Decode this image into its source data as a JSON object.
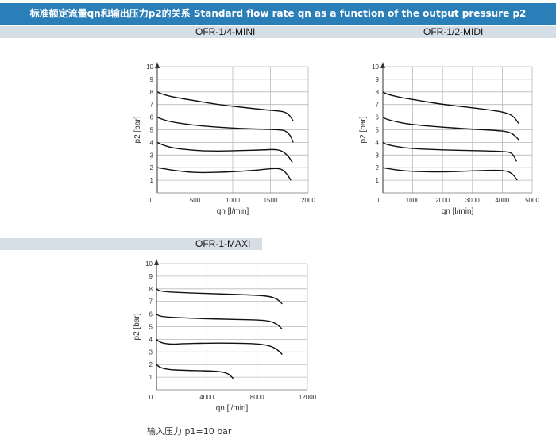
{
  "header": {
    "title": "标准额定流量qn和输出压力p2的关系 Standard flow rate qn as a function of the output pressure p2"
  },
  "colors": {
    "header_bg": "#2b7fb8",
    "band_bg": "#d6dee6",
    "grid": "#b9b9b9",
    "curve": "#111111"
  },
  "footnote": "输入压力 p1=10 bar",
  "chart_data": [
    {
      "type": "line",
      "title": "OFR-1/4-MINI",
      "xlabel": "qn [l/min]",
      "ylabel": "p2 [bar]",
      "xlim": [
        0,
        2000
      ],
      "ylim": [
        0,
        10
      ],
      "xticks": [
        0,
        500,
        1000,
        1500,
        2000
      ],
      "yticks": [
        1,
        2,
        3,
        4,
        5,
        6,
        7,
        8,
        9,
        10
      ],
      "grid": true,
      "series": [
        {
          "x": [
            0,
            50,
            200,
            500,
            800,
            1100,
            1400,
            1600,
            1700,
            1760,
            1800
          ],
          "y": [
            8.0,
            7.85,
            7.6,
            7.3,
            7.0,
            6.8,
            6.6,
            6.5,
            6.4,
            6.1,
            5.7
          ]
        },
        {
          "x": [
            0,
            50,
            200,
            500,
            800,
            1100,
            1400,
            1600,
            1700,
            1770,
            1800
          ],
          "y": [
            6.0,
            5.85,
            5.6,
            5.35,
            5.2,
            5.1,
            5.05,
            5.0,
            4.95,
            4.5,
            4.0
          ]
        },
        {
          "x": [
            0,
            50,
            200,
            500,
            800,
            1100,
            1400,
            1550,
            1650,
            1740,
            1790
          ],
          "y": [
            4.0,
            3.85,
            3.55,
            3.35,
            3.3,
            3.35,
            3.4,
            3.45,
            3.35,
            2.9,
            2.4
          ]
        },
        {
          "x": [
            0,
            50,
            200,
            400,
            600,
            900,
            1200,
            1400,
            1550,
            1650,
            1720,
            1770
          ],
          "y": [
            2.0,
            1.95,
            1.8,
            1.65,
            1.6,
            1.65,
            1.75,
            1.85,
            1.95,
            1.9,
            1.5,
            1.0
          ]
        }
      ]
    },
    {
      "type": "line",
      "title": "OFR-1/2-MIDI",
      "xlabel": "qn [l/min]",
      "ylabel": "p2 [bar]",
      "xlim": [
        0,
        5000
      ],
      "ylim": [
        0,
        10
      ],
      "xticks": [
        0,
        1000,
        2000,
        3000,
        4000,
        5000
      ],
      "yticks": [
        1,
        2,
        3,
        4,
        5,
        6,
        7,
        8,
        9,
        10
      ],
      "grid": true,
      "series": [
        {
          "x": [
            0,
            100,
            500,
            1000,
            2000,
            3000,
            3800,
            4200,
            4400,
            4550
          ],
          "y": [
            8.0,
            7.85,
            7.6,
            7.4,
            7.0,
            6.75,
            6.5,
            6.3,
            6.0,
            5.5
          ]
        },
        {
          "x": [
            0,
            100,
            500,
            1000,
            2000,
            3000,
            3800,
            4200,
            4400,
            4550
          ],
          "y": [
            6.0,
            5.85,
            5.6,
            5.4,
            5.2,
            5.05,
            4.95,
            4.85,
            4.6,
            4.2
          ]
        },
        {
          "x": [
            0,
            100,
            500,
            1000,
            2000,
            3000,
            3800,
            4200,
            4350,
            4480
          ],
          "y": [
            4.0,
            3.85,
            3.65,
            3.5,
            3.4,
            3.35,
            3.3,
            3.25,
            3.1,
            2.5
          ]
        },
        {
          "x": [
            0,
            100,
            500,
            1000,
            2000,
            3000,
            3800,
            4150,
            4350,
            4500
          ],
          "y": [
            2.0,
            1.95,
            1.8,
            1.7,
            1.65,
            1.75,
            1.8,
            1.75,
            1.5,
            1.0
          ]
        }
      ]
    },
    {
      "type": "line",
      "title": "OFR-1-MAXI",
      "xlabel": "qn [l/min]",
      "ylabel": "p2 [bar]",
      "xlim": [
        0,
        12000
      ],
      "ylim": [
        0,
        10
      ],
      "xticks": [
        0,
        4000,
        8000,
        12000
      ],
      "yticks": [
        1,
        2,
        3,
        4,
        5,
        6,
        7,
        8,
        9,
        10
      ],
      "grid": true,
      "series": [
        {
          "x": [
            0,
            300,
            2000,
            5000,
            8000,
            9000,
            9600,
            10000
          ],
          "y": [
            8.0,
            7.8,
            7.7,
            7.6,
            7.5,
            7.4,
            7.2,
            6.8
          ]
        },
        {
          "x": [
            0,
            300,
            2000,
            5000,
            8000,
            9000,
            9600,
            10000
          ],
          "y": [
            6.0,
            5.8,
            5.7,
            5.6,
            5.55,
            5.45,
            5.2,
            4.8
          ]
        },
        {
          "x": [
            0,
            300,
            1000,
            2000,
            4000,
            6000,
            8000,
            9000,
            9600,
            10000
          ],
          "y": [
            4.0,
            3.75,
            3.6,
            3.65,
            3.7,
            3.7,
            3.65,
            3.5,
            3.2,
            2.8
          ]
        },
        {
          "x": [
            0,
            300,
            1000,
            2000,
            4000,
            5000,
            5700,
            6100
          ],
          "y": [
            2.0,
            1.75,
            1.6,
            1.55,
            1.5,
            1.45,
            1.3,
            0.9
          ]
        }
      ]
    }
  ]
}
